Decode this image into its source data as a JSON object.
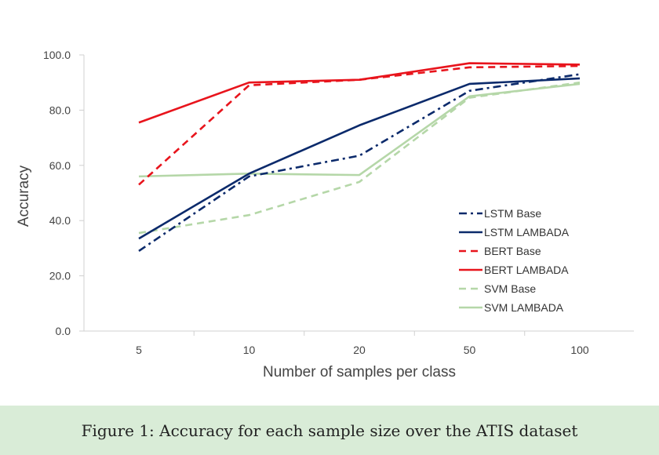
{
  "chart_data": {
    "type": "line",
    "title": "",
    "xlabel": "Number of samples per class",
    "ylabel": "Accuracy",
    "categories": [
      "5",
      "10",
      "20",
      "50",
      "100"
    ],
    "yticks": [
      "0.0",
      "20.0",
      "40.0",
      "60.0",
      "80.0",
      "100.0"
    ],
    "ylim": [
      0,
      100
    ],
    "grid": false,
    "legend_position": "right",
    "series": [
      {
        "name": "LSTM Base",
        "color": "#0b2a6b",
        "dash": "dashdot",
        "values": [
          29.0,
          56.0,
          63.5,
          87.0,
          93.0
        ]
      },
      {
        "name": "LSTM LAMBADA",
        "color": "#0b2a6b",
        "dash": "solid",
        "values": [
          33.5,
          57.0,
          74.5,
          89.5,
          91.5
        ]
      },
      {
        "name": "BERT Base",
        "color": "#e8141c",
        "dash": "dashed",
        "values": [
          53.0,
          89.0,
          91.0,
          95.5,
          96.0
        ]
      },
      {
        "name": "BERT LAMBADA",
        "color": "#e8141c",
        "dash": "solid",
        "values": [
          75.5,
          90.0,
          91.0,
          97.0,
          96.5
        ]
      },
      {
        "name": "SVM Base",
        "color": "#b5d7a8",
        "dash": "dashed",
        "values": [
          35.5,
          42.0,
          54.0,
          84.5,
          90.0
        ]
      },
      {
        "name": "SVM LAMBADA",
        "color": "#b5d7a8",
        "dash": "solid",
        "values": [
          56.0,
          57.0,
          56.5,
          85.0,
          89.5
        ]
      }
    ]
  },
  "caption": "Figure 1: Accuracy for each sample size over the ATIS dataset"
}
